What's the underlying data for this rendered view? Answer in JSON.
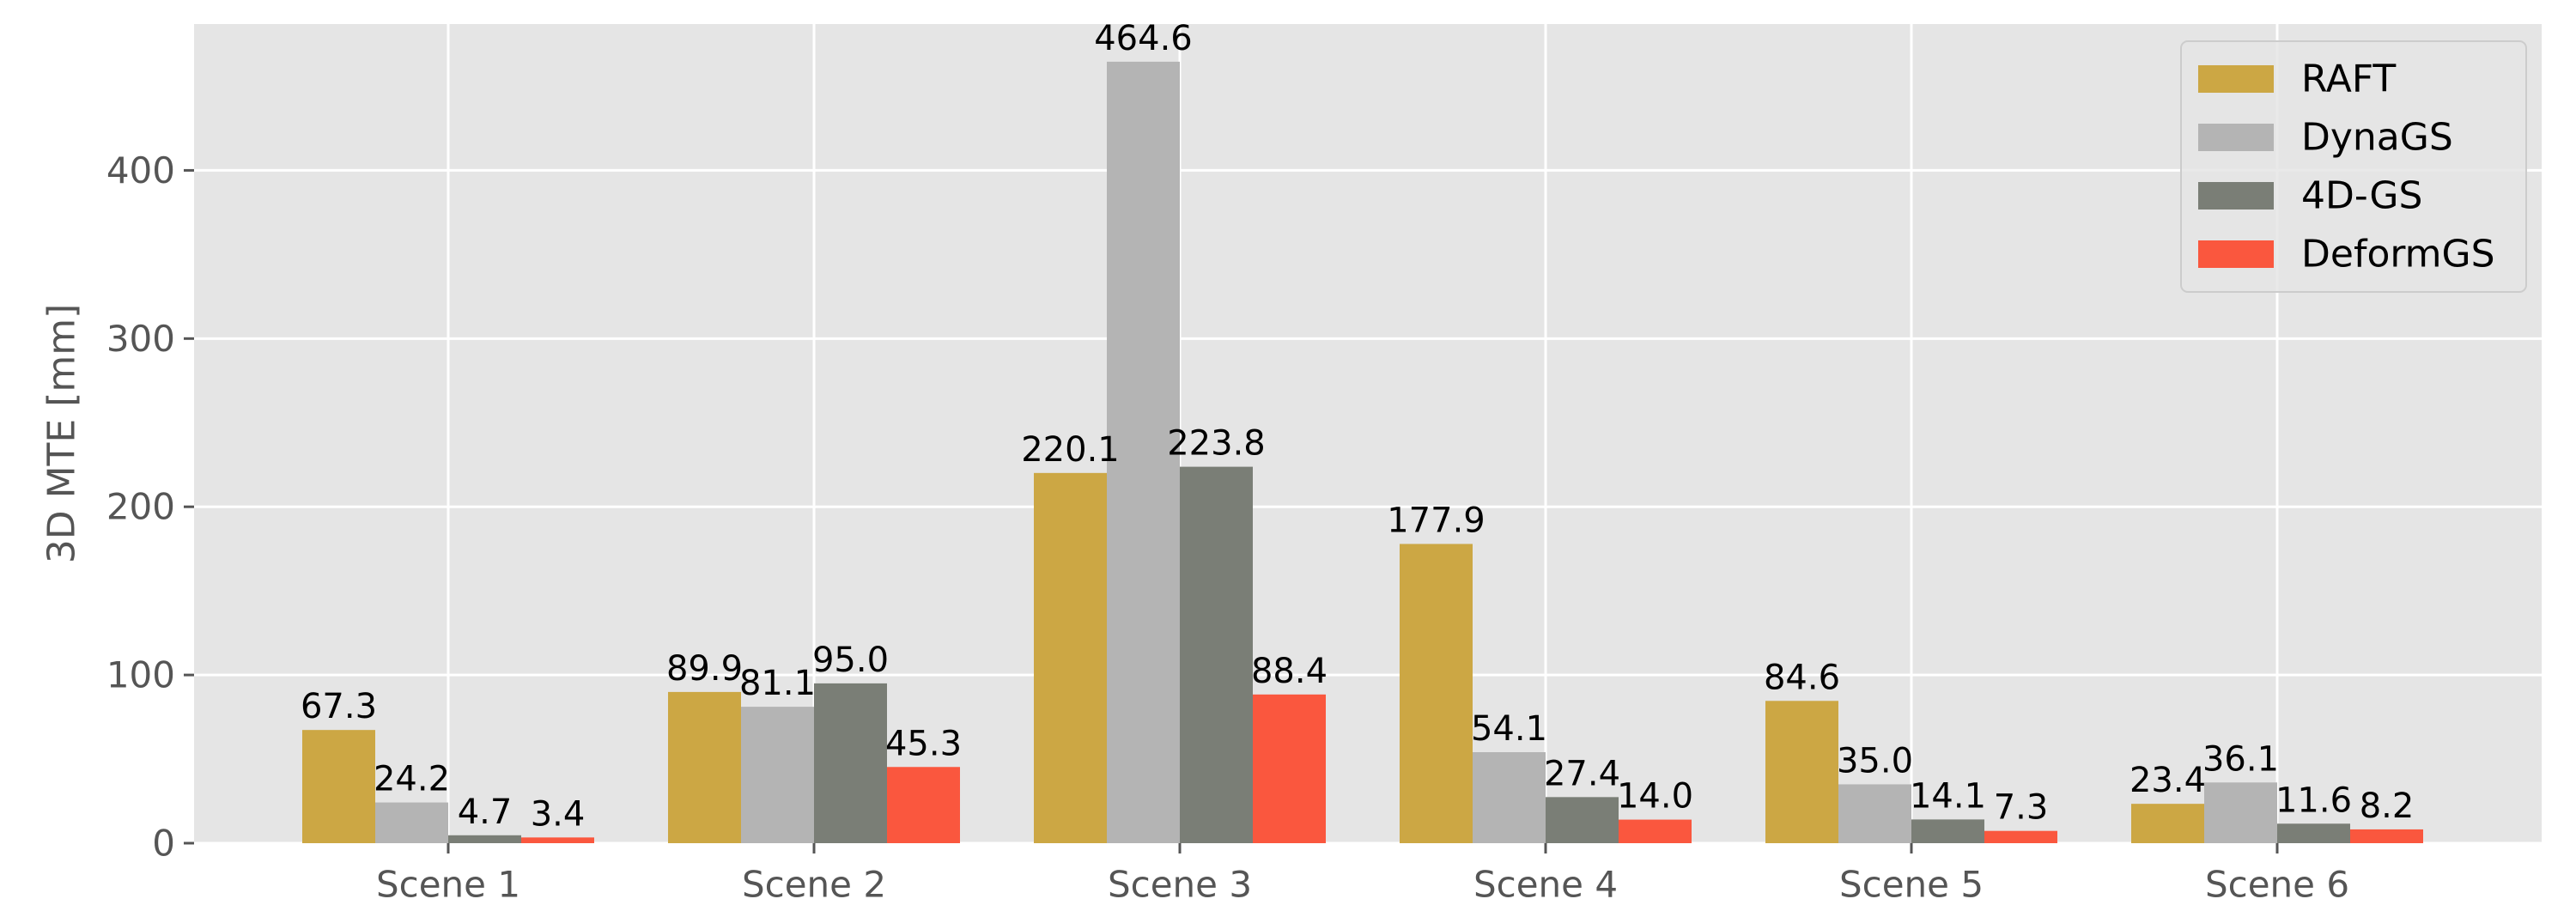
{
  "chart_data": {
    "type": "bar",
    "title": "",
    "xlabel": "",
    "ylabel": "3D MTE [mm]",
    "categories": [
      "Scene 1",
      "Scene 2",
      "Scene 3",
      "Scene 4",
      "Scene 5",
      "Scene 6"
    ],
    "series": [
      {
        "name": "RAFT",
        "color": "#CCA744",
        "values": [
          67.3,
          89.9,
          220.1,
          177.9,
          84.6,
          23.4
        ]
      },
      {
        "name": "DynaGS",
        "color": "#B4B4B4",
        "values": [
          24.2,
          81.1,
          464.6,
          54.1,
          35.0,
          36.1
        ]
      },
      {
        "name": "4D-GS",
        "color": "#7A7E76",
        "values": [
          4.7,
          95.0,
          223.8,
          27.4,
          14.1,
          11.6
        ]
      },
      {
        "name": "DeformGS",
        "color": "#FA573E",
        "values": [
          3.4,
          45.3,
          88.4,
          14.0,
          7.3,
          8.2
        ]
      }
    ],
    "data_labels": [
      [
        "67.3",
        "89.9",
        "220.1",
        "177.9",
        "84.6",
        "23.4"
      ],
      [
        "24.2",
        "81.1",
        "464.6",
        "54.1",
        "35.0",
        "36.1"
      ],
      [
        "4.7",
        "95.0",
        "223.8",
        "27.4",
        "14.1",
        "11.6"
      ],
      [
        "3.4",
        "45.3",
        "88.4",
        "14.0",
        "7.3",
        "8.2"
      ]
    ],
    "y_ticks": [
      0,
      100,
      200,
      300,
      400
    ],
    "y_tick_labels": [
      "0",
      "100",
      "200",
      "300",
      "400"
    ],
    "ylim": [
      0,
      487
    ],
    "grid": true,
    "legend_position": "top-right",
    "background": "#E5E5E5"
  }
}
